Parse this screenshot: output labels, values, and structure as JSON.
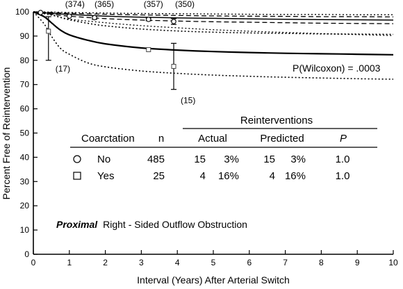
{
  "chart_data": {
    "type": "line",
    "title": "",
    "xlabel": "Interval (Years) After Arterial Switch",
    "ylabel": "Percent Free of Reintervention",
    "xlim": [
      0,
      10
    ],
    "ylim": [
      0,
      100
    ],
    "x_ticks": [
      0,
      1,
      2,
      3,
      4,
      5,
      6,
      7,
      8,
      9,
      10
    ],
    "y_ticks": [
      0,
      10,
      20,
      30,
      40,
      50,
      60,
      70,
      80,
      90,
      100
    ],
    "grid": false,
    "series": [
      {
        "name": "No",
        "line": "solid",
        "x": [
          0,
          0.5,
          1,
          2,
          3,
          4,
          5,
          6,
          7,
          8,
          9,
          10
        ],
        "y": [
          100,
          99.4,
          98.9,
          98.2,
          97.8,
          97.5,
          97.3,
          97.1,
          96.9,
          96.8,
          96.7,
          96.6
        ],
        "ci_inner_upper": [
          100,
          99.7,
          99.4,
          99.0,
          98.7,
          98.5,
          98.3,
          98.2,
          98.1,
          98.0,
          98.0,
          97.9
        ],
        "ci_inner_lower": [
          100,
          99.0,
          98.2,
          97.2,
          96.6,
          96.2,
          95.9,
          95.7,
          95.5,
          95.3,
          95.2,
          95.1
        ],
        "ci_outer_upper": [
          100,
          99.9,
          99.7,
          99.5,
          99.3,
          99.2,
          99.1,
          99.0,
          98.9,
          98.9,
          98.8,
          98.8
        ],
        "ci_outer_lower": [
          100,
          98.6,
          97.0,
          95.5,
          94.3,
          93.4,
          92.6,
          92.0,
          91.5,
          91.0,
          90.6,
          90.2
        ],
        "points": [
          {
            "x": 1.0,
            "y": 98.2,
            "err_low": 98.2,
            "err_high": 98.2,
            "n": "(374)"
          },
          {
            "x": 1.7,
            "y": 97.6,
            "err_low": 96.9,
            "err_high": 98.3,
            "n": "(365)"
          },
          {
            "x": 3.2,
            "y": 96.9,
            "err_low": 96.3,
            "err_high": 97.5,
            "n": "(357)"
          },
          {
            "x": 3.9,
            "y": 96.0,
            "err_low": 94.8,
            "err_high": 97.2,
            "n": "(350)"
          }
        ]
      },
      {
        "name": "Yes",
        "line": "solid",
        "x": [
          0,
          0.3,
          0.5,
          0.75,
          1,
          1.5,
          2,
          3,
          4,
          5,
          6,
          7,
          8,
          9,
          10
        ],
        "y": [
          100,
          98.0,
          95.5,
          92.5,
          90.5,
          88.3,
          86.8,
          85.1,
          84.2,
          83.6,
          83.2,
          82.9,
          82.7,
          82.5,
          82.3
        ],
        "ci_upper": [
          100,
          99.6,
          98.9,
          97.7,
          96.7,
          95.3,
          94.2,
          92.9,
          92.1,
          91.6,
          91.3,
          91.1,
          90.9,
          90.8,
          90.7
        ],
        "ci_lower": [
          100,
          95.0,
          90.0,
          85.0,
          82.5,
          79.0,
          77.3,
          75.6,
          74.6,
          73.9,
          73.4,
          73.0,
          72.7,
          72.4,
          72.2
        ],
        "points": [
          {
            "x": 0.42,
            "y": 92.0,
            "err_low": 80.0,
            "err_high": 98.0,
            "n": "(17)"
          },
          {
            "x": 3.2,
            "y": 84.4,
            "err_low": 84.4,
            "err_high": 84.4,
            "n": ""
          },
          {
            "x": 3.9,
            "y": 77.5,
            "err_low": 68.0,
            "err_high": 87.0,
            "n": "(15)"
          }
        ]
      }
    ],
    "annotations": {
      "pvalue": "P(Wilcoxon) = .0003",
      "subtitle_bold": "Proximal",
      "subtitle_rest": "Right - Sided Outflow Obstruction"
    },
    "table": {
      "super_header": "Reinterventions",
      "headers": [
        "Coarctation",
        "n",
        "Actual",
        "Predicted",
        "P"
      ],
      "rows": [
        {
          "symbol": "circle",
          "group": "No",
          "n": "485",
          "actual_n": "15",
          "actual_pct": "3%",
          "pred_n": "15",
          "pred_pct": "3%",
          "p": "1.0"
        },
        {
          "symbol": "square",
          "group": "Yes",
          "n": "25",
          "actual_n": "4",
          "actual_pct": "16%",
          "pred_n": "4",
          "pred_pct": "16%",
          "p": "1.0"
        }
      ]
    }
  }
}
